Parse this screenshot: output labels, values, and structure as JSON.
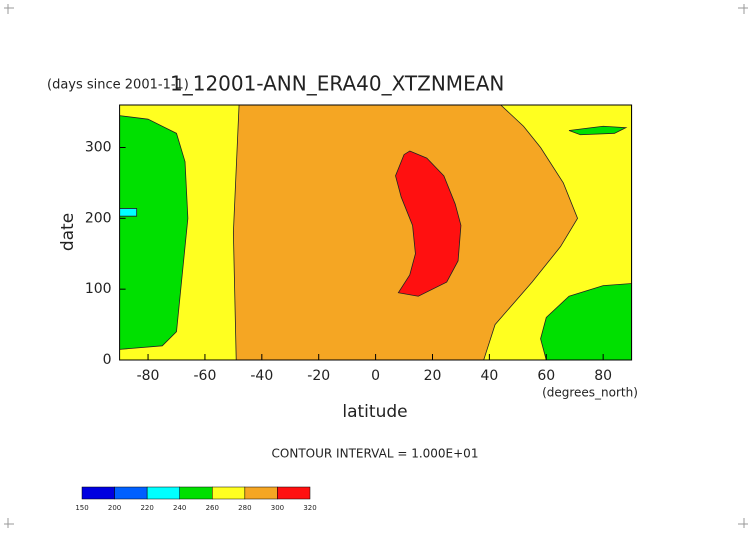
{
  "chart_data": {
    "type": "contour",
    "title": "1_12001-ANN_ERA40_XTZNMEAN",
    "subtitle": "(days since 2001-1-1)",
    "x_label": "latitude",
    "x_unit": "(degrees_north)",
    "y_label": "date",
    "note": "CONTOUR INTERVAL = 1.000E+01",
    "xlim": [
      -90,
      90
    ],
    "ylim": [
      0,
      360
    ],
    "xticks": [
      -80,
      -60,
      -40,
      -20,
      0,
      20,
      40,
      60,
      80
    ],
    "yticks": [
      0,
      100,
      200,
      300
    ],
    "colorbar": {
      "levels": [
        150,
        200,
        220,
        240,
        260,
        280,
        300,
        320
      ],
      "colors": [
        "#0000e0",
        "#0060ff",
        "#00ffff",
        "#00e000",
        "#ffff20",
        "#f5a623",
        "#ff1010"
      ]
    },
    "regions": [
      {
        "range": [
          260,
          280
        ],
        "lat": [
          -90,
          90,
          90,
          -90
        ],
        "day": [
          0,
          0,
          360,
          360
        ]
      },
      {
        "range": [
          280,
          300
        ],
        "lat": [
          -49,
          38,
          42,
          55,
          65,
          71,
          66,
          58,
          52,
          44,
          -48,
          -50,
          -49
        ],
        "day": [
          0,
          0,
          50,
          110,
          160,
          200,
          250,
          300,
          330,
          360,
          360,
          180,
          0
        ]
      },
      {
        "range": [
          240,
          260
        ],
        "lat": [
          -90,
          -75,
          -70,
          -68,
          -66,
          -67,
          -70,
          -80,
          -90
        ],
        "day": [
          15,
          20,
          40,
          120,
          200,
          280,
          320,
          340,
          345
        ]
      },
      {
        "range": [
          220,
          240
        ],
        "lat": [
          -90,
          -84,
          -84,
          -90
        ],
        "day": [
          203,
          203,
          214,
          214
        ]
      },
      {
        "range": [
          240,
          260
        ],
        "lat": [
          90,
          60,
          58,
          60,
          68,
          80,
          90
        ],
        "day": [
          0,
          0,
          30,
          60,
          90,
          105,
          108
        ]
      },
      {
        "range": [
          240,
          260
        ],
        "lat": [
          68,
          80,
          88,
          84,
          72
        ],
        "day": [
          324,
          330,
          328,
          320,
          318
        ]
      },
      {
        "range": [
          300,
          320
        ],
        "lat": [
          12,
          18,
          24,
          28,
          30,
          29,
          25,
          15,
          8,
          12,
          14,
          13,
          9,
          7,
          10
        ],
        "day": [
          295,
          285,
          260,
          220,
          190,
          140,
          110,
          90,
          95,
          120,
          150,
          190,
          230,
          260,
          290
        ]
      }
    ]
  }
}
